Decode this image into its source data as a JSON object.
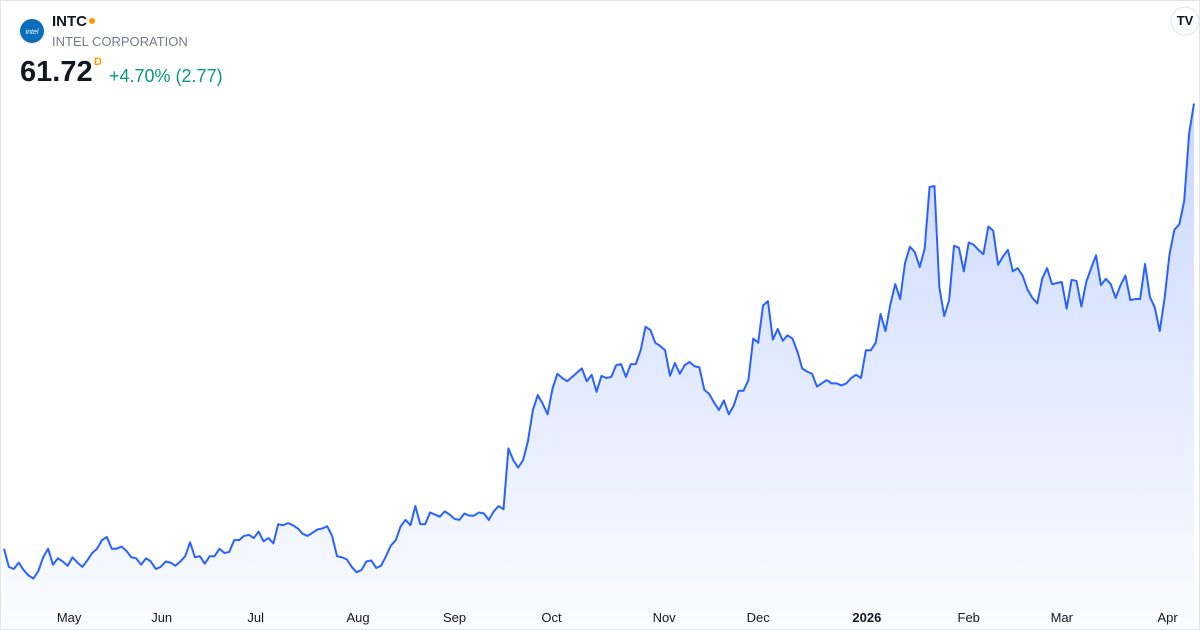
{
  "header": {
    "symbol": "INTC",
    "name": "INTEL CORPORATION",
    "logo_text": "intel",
    "price": "61.72",
    "price_flag": "D",
    "change": "+4.70% (2.77)"
  },
  "chart_data": {
    "type": "area",
    "color": "#2962ff",
    "fill": "#2962ff",
    "values": [
      20.0,
      18.3,
      18.1,
      18.7,
      18.0,
      17.5,
      17.2,
      17.9,
      19.2,
      20.0,
      18.5,
      19.1,
      18.8,
      18.4,
      19.2,
      18.7,
      18.3,
      18.9,
      19.6,
      20.0,
      20.8,
      21.1,
      20.0,
      20.0,
      20.2,
      19.8,
      19.2,
      19.1,
      18.5,
      19.1,
      18.8,
      18.1,
      18.3,
      18.8,
      18.7,
      18.4,
      18.8,
      19.3,
      20.6,
      19.2,
      19.3,
      18.6,
      19.3,
      19.3,
      20.0,
      19.6,
      19.7,
      20.8,
      20.8,
      21.2,
      21.3,
      21.0,
      21.6,
      20.7,
      21.0,
      20.5,
      22.3,
      22.2,
      22.4,
      22.2,
      21.9,
      21.4,
      21.2,
      21.5,
      21.8,
      21.9,
      22.1,
      21.2,
      19.3,
      19.2,
      19.0,
      18.3,
      17.8,
      18.0,
      18.8,
      18.9,
      18.2,
      18.4,
      19.3,
      20.3,
      20.8,
      22.1,
      22.7,
      22.2,
      24.0,
      22.3,
      22.3,
      23.4,
      23.2,
      23.0,
      23.5,
      23.2,
      22.8,
      22.7,
      23.3,
      23.1,
      23.1,
      23.4,
      23.3,
      22.7,
      23.5,
      24.0,
      23.7,
      29.4,
      28.3,
      27.6,
      28.3,
      30.1,
      33.0,
      34.4,
      33.6,
      32.6,
      35.0,
      36.4,
      36.0,
      35.7,
      36.1,
      36.5,
      36.9,
      35.7,
      36.3,
      34.7,
      36.2,
      36.0,
      36.1,
      37.2,
      37.3,
      36.1,
      37.3,
      37.3,
      38.6,
      40.8,
      40.5,
      39.3,
      39.0,
      38.6,
      36.2,
      37.4,
      36.4,
      37.2,
      37.5,
      37.1,
      37.0,
      34.9,
      34.5,
      33.7,
      33.0,
      33.9,
      32.6,
      33.4,
      34.8,
      34.8,
      35.8,
      39.7,
      39.3,
      42.8,
      43.2,
      39.6,
      40.6,
      39.5,
      40.0,
      39.7,
      38.5,
      36.9,
      36.6,
      36.4,
      35.2,
      35.5,
      35.8,
      35.5,
      35.5,
      35.3,
      35.5,
      36.0,
      36.3,
      36.0,
      38.6,
      38.6,
      39.3,
      42.0,
      40.4,
      42.9,
      44.8,
      43.4,
      46.8,
      48.3,
      47.8,
      46.4,
      48.1,
      53.9,
      54.0,
      44.5,
      41.8,
      43.3,
      48.4,
      48.2,
      46.0,
      48.7,
      48.5,
      48.0,
      47.6,
      50.2,
      49.8,
      46.6,
      47.4,
      48.0,
      46.0,
      46.3,
      45.6,
      44.3,
      43.5,
      43.0,
      45.3,
      46.3,
      44.8,
      44.9,
      45.0,
      42.5,
      45.2,
      45.1,
      42.7,
      45.0,
      46.3,
      47.5,
      44.7,
      45.3,
      44.8,
      43.5,
      44.7,
      45.6,
      43.3,
      43.4,
      43.4,
      46.7,
      43.6,
      42.6,
      40.4,
      43.5,
      47.6,
      49.9,
      50.4,
      52.6,
      58.9,
      61.72
    ],
    "xlim": [
      0,
      243
    ],
    "ylim": [
      15.1,
      62.9
    ],
    "xticks": [
      {
        "value": 13.3,
        "label": "May"
      },
      {
        "value": 32.2,
        "label": "Jun"
      },
      {
        "value": 51.4,
        "label": "Jul"
      },
      {
        "value": 72.3,
        "label": "Aug"
      },
      {
        "value": 92,
        "label": "Sep"
      },
      {
        "value": 111.8,
        "label": "Oct"
      },
      {
        "value": 134.8,
        "label": "Nov"
      },
      {
        "value": 154,
        "label": "Dec"
      },
      {
        "value": 176.2,
        "label": "2026",
        "bold": true
      },
      {
        "value": 197,
        "label": "Feb"
      },
      {
        "value": 216,
        "label": "Mar"
      },
      {
        "value": 237.6,
        "label": "Apr"
      }
    ]
  }
}
